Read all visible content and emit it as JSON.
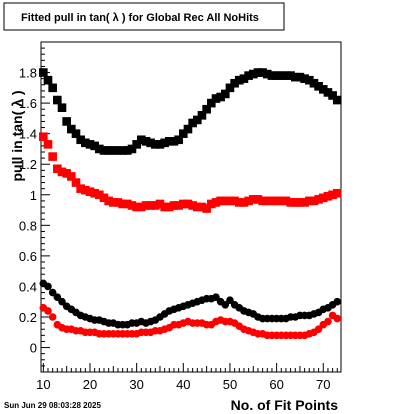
{
  "chart_data": {
    "type": "scatter",
    "title": "Fitted pull in tan( λ ) for Global Rec All NoHits",
    "xlabel": "No. of Fit Points",
    "ylabel": "pull in tan( λ )",
    "xlim": [
      9.5,
      73.8
    ],
    "ylim": [
      -0.16,
      2.0
    ],
    "x_ticks": [
      10,
      20,
      30,
      40,
      50,
      60,
      70
    ],
    "y_ticks": [
      0,
      0.2,
      0.4,
      0.6,
      0.8,
      1,
      1.2,
      1.4,
      1.6,
      1.8
    ],
    "y_tick_labels": [
      "0",
      "0.2",
      "0.4",
      "0.6",
      "0.8",
      "1",
      "1.2",
      "1.4",
      "1.6",
      "1.8"
    ],
    "grid": false,
    "series": [
      {
        "color": "#000000",
        "marker": "square",
        "x": [
          10,
          11,
          12,
          13,
          14,
          15,
          16,
          17,
          18,
          19,
          20,
          21,
          22,
          23,
          24,
          25,
          26,
          27,
          28,
          29,
          30,
          31,
          32,
          33,
          34,
          35,
          36,
          37,
          38,
          39,
          40,
          41,
          42,
          43,
          44,
          45,
          46,
          47,
          48,
          49,
          50,
          51,
          52,
          53,
          54,
          55,
          56,
          57,
          58,
          59,
          60,
          61,
          62,
          63,
          64,
          65,
          66,
          67,
          68,
          69,
          70,
          71,
          72,
          73
        ],
        "y": [
          1.8,
          1.75,
          1.7,
          1.62,
          1.57,
          1.48,
          1.43,
          1.4,
          1.36,
          1.34,
          1.33,
          1.32,
          1.3,
          1.29,
          1.29,
          1.29,
          1.29,
          1.29,
          1.29,
          1.3,
          1.33,
          1.36,
          1.35,
          1.34,
          1.33,
          1.33,
          1.34,
          1.35,
          1.35,
          1.36,
          1.4,
          1.43,
          1.47,
          1.49,
          1.52,
          1.56,
          1.6,
          1.63,
          1.64,
          1.66,
          1.7,
          1.73,
          1.75,
          1.76,
          1.78,
          1.79,
          1.8,
          1.8,
          1.79,
          1.78,
          1.78,
          1.78,
          1.78,
          1.78,
          1.77,
          1.77,
          1.76,
          1.75,
          1.73,
          1.71,
          1.69,
          1.67,
          1.65,
          1.62
        ]
      },
      {
        "color": "#ff0000",
        "marker": "square",
        "x": [
          10,
          11,
          12,
          13,
          14,
          15,
          16,
          17,
          18,
          19,
          20,
          21,
          22,
          23,
          24,
          25,
          26,
          27,
          28,
          29,
          30,
          31,
          32,
          33,
          34,
          35,
          36,
          37,
          38,
          39,
          40,
          41,
          42,
          43,
          44,
          45,
          46,
          47,
          48,
          49,
          50,
          51,
          52,
          53,
          54,
          55,
          56,
          57,
          58,
          59,
          60,
          61,
          62,
          63,
          64,
          65,
          66,
          67,
          68,
          69,
          70,
          71,
          72,
          73
        ],
        "y": [
          1.38,
          1.33,
          1.25,
          1.17,
          1.15,
          1.14,
          1.12,
          1.08,
          1.04,
          1.03,
          1.02,
          1.01,
          1.0,
          0.98,
          0.96,
          0.95,
          0.95,
          0.94,
          0.94,
          0.93,
          0.92,
          0.92,
          0.93,
          0.93,
          0.93,
          0.94,
          0.92,
          0.92,
          0.93,
          0.93,
          0.94,
          0.94,
          0.93,
          0.92,
          0.92,
          0.91,
          0.94,
          0.95,
          0.96,
          0.96,
          0.96,
          0.96,
          0.95,
          0.95,
          0.96,
          0.97,
          0.97,
          0.96,
          0.96,
          0.96,
          0.96,
          0.96,
          0.96,
          0.95,
          0.95,
          0.95,
          0.95,
          0.96,
          0.96,
          0.97,
          0.98,
          0.99,
          1.0,
          1.01
        ]
      },
      {
        "color": "#000000",
        "marker": "circle",
        "x": [
          10,
          11,
          12,
          13,
          14,
          15,
          16,
          17,
          18,
          19,
          20,
          21,
          22,
          23,
          24,
          25,
          26,
          27,
          28,
          29,
          30,
          31,
          32,
          33,
          34,
          35,
          36,
          37,
          38,
          39,
          40,
          41,
          42,
          43,
          44,
          45,
          46,
          47,
          48,
          49,
          50,
          51,
          52,
          53,
          54,
          55,
          56,
          57,
          58,
          59,
          60,
          61,
          62,
          63,
          64,
          65,
          66,
          67,
          68,
          69,
          70,
          71,
          72,
          73
        ],
        "y": [
          0.42,
          0.4,
          0.36,
          0.33,
          0.3,
          0.27,
          0.25,
          0.23,
          0.21,
          0.2,
          0.19,
          0.18,
          0.18,
          0.17,
          0.16,
          0.16,
          0.15,
          0.15,
          0.15,
          0.16,
          0.16,
          0.17,
          0.16,
          0.17,
          0.18,
          0.2,
          0.22,
          0.24,
          0.25,
          0.26,
          0.27,
          0.28,
          0.29,
          0.3,
          0.31,
          0.32,
          0.32,
          0.33,
          0.3,
          0.28,
          0.31,
          0.28,
          0.26,
          0.24,
          0.23,
          0.22,
          0.2,
          0.19,
          0.19,
          0.19,
          0.19,
          0.19,
          0.19,
          0.2,
          0.2,
          0.21,
          0.21,
          0.21,
          0.22,
          0.23,
          0.25,
          0.26,
          0.28,
          0.3
        ]
      },
      {
        "color": "#ff0000",
        "marker": "circle",
        "x": [
          10,
          11,
          12,
          13,
          14,
          15,
          16,
          17,
          18,
          19,
          20,
          21,
          22,
          23,
          24,
          25,
          26,
          27,
          28,
          29,
          30,
          31,
          32,
          33,
          34,
          35,
          36,
          37,
          38,
          39,
          40,
          41,
          42,
          43,
          44,
          45,
          46,
          47,
          48,
          49,
          50,
          51,
          52,
          53,
          54,
          55,
          56,
          57,
          58,
          59,
          60,
          61,
          62,
          63,
          64,
          65,
          66,
          67,
          68,
          69,
          70,
          71,
          72,
          73
        ],
        "y": [
          0.26,
          0.24,
          0.2,
          0.15,
          0.13,
          0.12,
          0.12,
          0.11,
          0.11,
          0.1,
          0.1,
          0.1,
          0.09,
          0.09,
          0.09,
          0.09,
          0.09,
          0.09,
          0.09,
          0.09,
          0.09,
          0.1,
          0.1,
          0.1,
          0.11,
          0.11,
          0.12,
          0.13,
          0.15,
          0.15,
          0.16,
          0.17,
          0.16,
          0.16,
          0.16,
          0.15,
          0.15,
          0.17,
          0.18,
          0.17,
          0.17,
          0.16,
          0.14,
          0.12,
          0.11,
          0.1,
          0.09,
          0.09,
          0.08,
          0.08,
          0.08,
          0.08,
          0.08,
          0.08,
          0.08,
          0.08,
          0.08,
          0.09,
          0.1,
          0.12,
          0.15,
          0.17,
          0.21,
          0.19
        ]
      }
    ]
  },
  "footer": {
    "timestamp": "Sun Jun 29 08:03:28 2025"
  }
}
